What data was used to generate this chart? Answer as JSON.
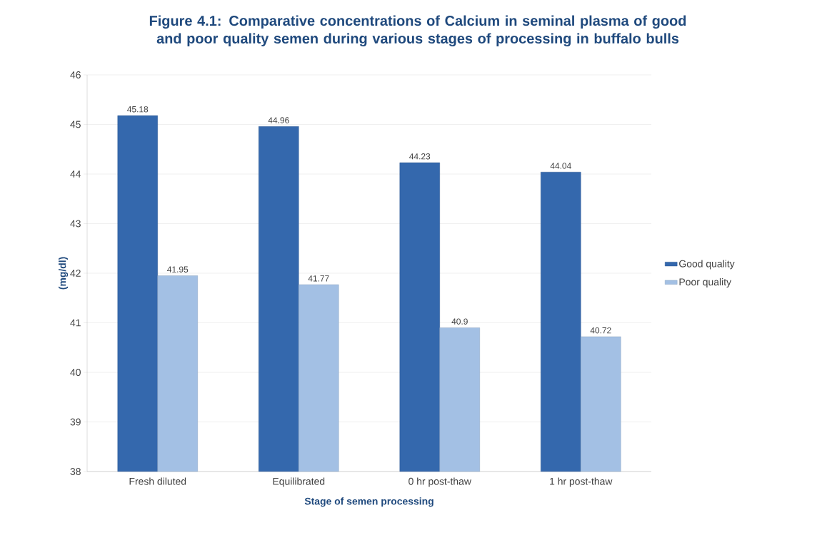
{
  "chart_data": {
    "type": "bar",
    "title": "Figure 4.1: Comparative concentrations of Calcium in seminal plasma of good and poor quality semen during various stages of processing in buffalo bulls",
    "xlabel": "Stage of semen processing",
    "ylabel": "(mg/dl)",
    "categories": [
      "Fresh diluted",
      "Equilibrated",
      "0 hr post-thaw",
      "1 hr post-thaw"
    ],
    "series": [
      {
        "name": "Good quality",
        "color": "#3468ad",
        "values": [
          45.18,
          44.96,
          44.23,
          44.04
        ]
      },
      {
        "name": "Poor quality",
        "color": "#a3c0e4",
        "values": [
          41.95,
          41.77,
          40.9,
          40.72
        ]
      }
    ],
    "ylim": [
      38,
      46
    ],
    "yticks": [
      38,
      39,
      40,
      41,
      42,
      43,
      44,
      45,
      46
    ],
    "grid": "y",
    "legend": "right",
    "data_labels": true
  }
}
